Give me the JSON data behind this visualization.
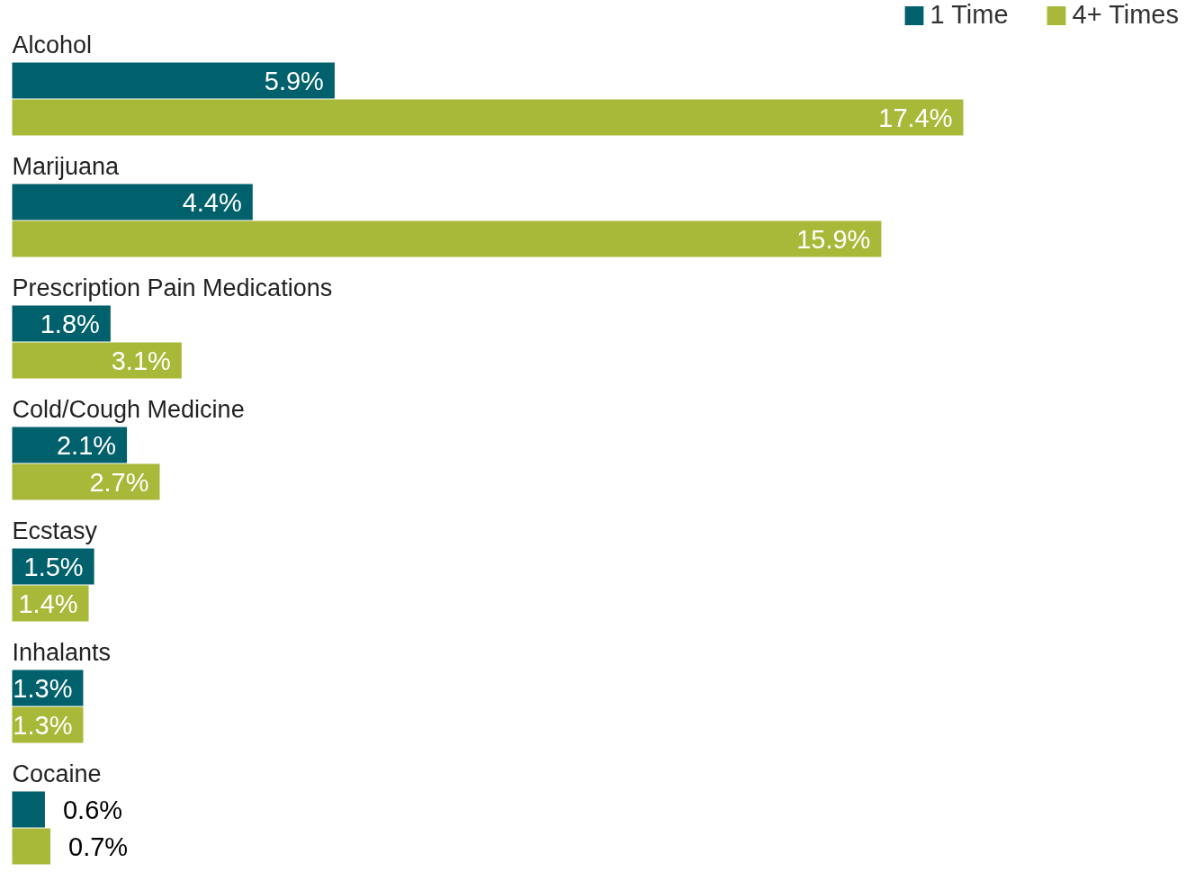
{
  "chart_data": {
    "type": "bar",
    "orientation": "horizontal",
    "categories": [
      "Alcohol",
      "Marijuana",
      "Prescription Pain Medications",
      "Cold/Cough Medicine",
      "Ecstasy",
      "Inhalants",
      "Cocaine"
    ],
    "series": [
      {
        "name": "1 Time",
        "color": "#00606b",
        "values": [
          5.9,
          4.4,
          1.8,
          2.1,
          1.5,
          1.3,
          0.6
        ],
        "value_labels": [
          "5.9%",
          "4.4%",
          "1.8%",
          "2.1%",
          "1.5%",
          "1.3%",
          "0.6%"
        ]
      },
      {
        "name": "4+ Times",
        "color": "#a8b838",
        "values": [
          17.4,
          15.9,
          3.1,
          2.7,
          1.4,
          1.3,
          0.7
        ],
        "value_labels": [
          "17.4%",
          "15.9%",
          "3.1%",
          "2.7%",
          "1.4%",
          "1.3%",
          "0.7%"
        ]
      }
    ],
    "legend": "top right"
  }
}
